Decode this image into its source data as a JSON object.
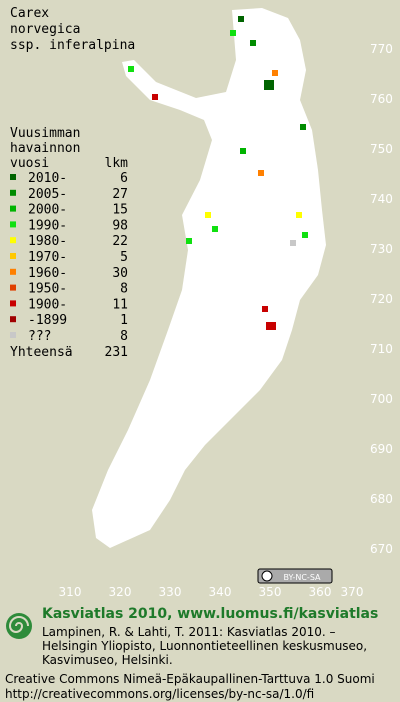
{
  "title": [
    "Carex",
    "norvegica",
    "ssp. inferalpina"
  ],
  "legend": {
    "heading": [
      "Vuusimman",
      "havainnon"
    ],
    "year_header": "vuosi",
    "count_header": "lkm",
    "rows": [
      {
        "label": "2010-",
        "count": 6,
        "color": "#006400"
      },
      {
        "label": "2005-",
        "count": 27,
        "color": "#008c00"
      },
      {
        "label": "2000-",
        "count": 15,
        "color": "#00b400"
      },
      {
        "label": "1990-",
        "count": 98,
        "color": "#10e010"
      },
      {
        "label": "1980-",
        "count": 22,
        "color": "#ffff00"
      },
      {
        "label": "1970-",
        "count": 5,
        "color": "#ffc800"
      },
      {
        "label": "1960-",
        "count": 30,
        "color": "#ff8000"
      },
      {
        "label": "1950-",
        "count": 8,
        "color": "#e04000"
      },
      {
        "label": "1900-",
        "count": 11,
        "color": "#c80000"
      },
      {
        "label": "-1899",
        "count": 1,
        "color": "#a00000"
      },
      {
        "label": "???",
        "count": 8,
        "color": "#c8c8c8"
      }
    ],
    "total_label": "Yhteensä",
    "total": 231
  },
  "grid": {
    "y_labels": [
      770,
      760,
      750,
      740,
      730,
      720,
      710,
      700,
      690,
      680,
      670
    ],
    "x_labels": [
      310,
      320,
      330,
      340,
      350,
      360,
      370
    ]
  },
  "license_badge": "BY-NC-SA",
  "footer": {
    "site": "Kasviatlas 2010, www.luomus.fi/kasviatlas",
    "citation": [
      "Lampinen, R. & Lahti, T. 2011: Kasviatlas 2010. –",
      "Helsingin Yliopisto, Luonnontieteellinen keskusmuseo,",
      "Kasvimuseo, Helsinki."
    ],
    "license": [
      "Creative Commons Nimeä-Epäkaupallinen-Tarttuva 1.0 Suomi",
      "http://creativecommons.org/licenses/by-nc-sa/1.0/fi"
    ]
  }
}
